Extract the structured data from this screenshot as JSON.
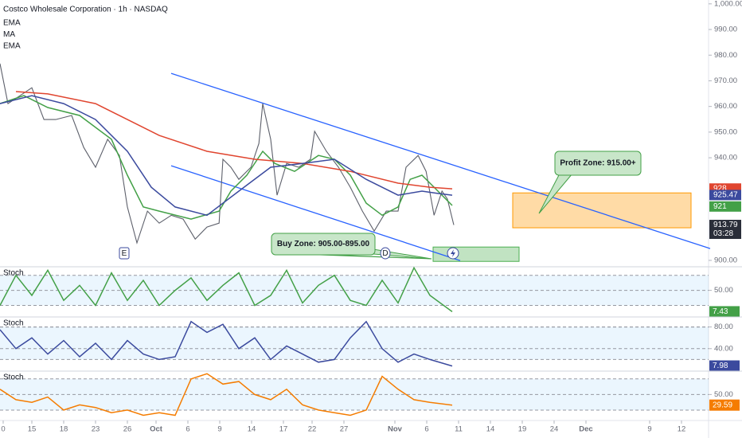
{
  "header": {
    "title": "Costco Wholesale Corporation · 1h · NASDAQ"
  },
  "chart_data": [
    {
      "type": "line",
      "xlim": [
        0,
        22.25
      ],
      "ylim": [
        897.5,
        1001.5
      ],
      "yticks": [
        {
          "value": 900,
          "label": "900.00"
        },
        {
          "value": 940,
          "label": "940.00"
        },
        {
          "value": 950,
          "label": "950.00"
        },
        {
          "value": 960,
          "label": "960.00"
        },
        {
          "value": 970,
          "label": "970.00"
        },
        {
          "value": 980,
          "label": "980.00"
        },
        {
          "value": 990,
          "label": "990.00"
        },
        {
          "value": 1000,
          "label": "1,000.00"
        }
      ],
      "xticks": [
        {
          "value": 0.1,
          "label": "0"
        },
        {
          "value": 1,
          "label": "15"
        },
        {
          "value": 2,
          "label": "18"
        },
        {
          "value": 3,
          "label": "23"
        },
        {
          "value": 4,
          "label": "26"
        },
        {
          "value": 4.9,
          "label": "Oct"
        },
        {
          "value": 5.9,
          "label": "6"
        },
        {
          "value": 6.9,
          "label": "9"
        },
        {
          "value": 7.9,
          "label": "14"
        },
        {
          "value": 8.9,
          "label": "17"
        },
        {
          "value": 9.8,
          "label": "22"
        },
        {
          "value": 10.8,
          "label": "27"
        },
        {
          "value": 12.4,
          "label": "Nov"
        },
        {
          "value": 13.4,
          "label": "6"
        },
        {
          "value": 14.4,
          "label": "11"
        },
        {
          "value": 15.4,
          "label": "14"
        },
        {
          "value": 16.4,
          "label": "19"
        },
        {
          "value": 17.4,
          "label": "24"
        },
        {
          "value": 18.4,
          "label": "Dec"
        },
        {
          "value": 20.4,
          "label": "9"
        },
        {
          "value": 21.4,
          "label": "12"
        }
      ],
      "series": [
        {
          "color": "#5d606b",
          "x": [
            0,
            0.25,
            0.63,
            1,
            1.38,
            1.75,
            2.25,
            2.63,
            3,
            3.38,
            3.75,
            4,
            4.3,
            4.63,
            5,
            5.38,
            5.75,
            6.13,
            6.5,
            6.88,
            7,
            7.25,
            7.5,
            7.88,
            8.13,
            8.25,
            8.5,
            8.7,
            9,
            9.38,
            9.75,
            9.88,
            10.25,
            10.63,
            11,
            11.38,
            11.75,
            12.13,
            12.5,
            12.75,
            13.13,
            13.38,
            13.63,
            13.88,
            14.05,
            14.25
          ],
          "values": [
            976.7,
            961.1,
            964.2,
            967.3,
            954.9,
            954.9,
            956.5,
            944.0,
            936.3,
            947.2,
            940.9,
            920.8,
            906.8,
            919.2,
            914.5,
            917.6,
            916.1,
            908.3,
            913.0,
            914.5,
            939.4,
            936.3,
            931.6,
            936.3,
            945.6,
            961.1,
            947.2,
            925.4,
            937.8,
            936.3,
            939.4,
            950.3,
            942.5,
            936.3,
            928.5,
            919.2,
            911.4,
            919.2,
            919.2,
            936.3,
            940.9,
            934.7,
            917.6,
            927.0,
            923.9,
            913.8
          ]
        },
        {
          "name": "EMA",
          "color": "#43a047",
          "x": [
            0,
            0.75,
            1.5,
            2.5,
            3.5,
            4,
            4.5,
            5,
            6,
            6.88,
            7.25,
            7.75,
            8.25,
            8.63,
            9.25,
            10,
            10.5,
            11,
            11.5,
            12,
            12.5,
            12.88,
            13.25,
            13.63,
            14.2
          ],
          "values": [
            961.1,
            964.2,
            959.6,
            956.5,
            947.2,
            933.2,
            920.8,
            919.2,
            916.1,
            919.2,
            927.0,
            933.2,
            942.5,
            937.8,
            934.7,
            940.9,
            939.4,
            933.2,
            922.3,
            917.6,
            920.8,
            931.6,
            933.2,
            928.5,
            921.4
          ]
        },
        {
          "name": "MA",
          "color": "#e0452f",
          "x": [
            0.5,
            1.5,
            3,
            4,
            5,
            6.5,
            8,
            9.5,
            11,
            12.5,
            13.5,
            14.2
          ],
          "values": [
            965.8,
            964.9,
            961.1,
            954.9,
            948.7,
            942.5,
            939.4,
            937.8,
            934.7,
            930.1,
            928.5,
            927.9
          ]
        },
        {
          "name": "EMA",
          "color": "#3b4a9e",
          "x": [
            0,
            1,
            2,
            3,
            4,
            4.75,
            5.5,
            6.5,
            7.5,
            8.5,
            9.5,
            10.5,
            11.5,
            12.5,
            13.25,
            13.75,
            14.2
          ],
          "values": [
            961.1,
            964.2,
            961.1,
            954.9,
            942.5,
            928.5,
            920.8,
            917.6,
            927.0,
            936.3,
            937.8,
            939.4,
            931.6,
            925.4,
            927.0,
            926.1,
            925.4
          ]
        }
      ],
      "price_labels": [
        {
          "value": 928,
          "label": "928",
          "color": "#e0452f"
        },
        {
          "value": 925.47,
          "label": "925.47",
          "color": "#3b4a9e"
        },
        {
          "value": 921,
          "label": "921",
          "color": "#43a047"
        },
        {
          "value": 913.79,
          "label": "913.79",
          "color": "#2a2e39"
        }
      ],
      "countdown": "03:28",
      "trendlines": [
        {
          "x": [
            5.375,
            22.3
          ],
          "y": [
            972.9,
            904.6
          ]
        },
        {
          "x": [
            5.375,
            14.45
          ],
          "y": [
            936.9,
            899.9
          ]
        }
      ],
      "zones": [
        {
          "label": "Profit Zone: 915.00+",
          "x": [
            16.1,
            21.7
          ],
          "y": [
            912.7,
            926.3
          ],
          "color": "#ff9800"
        },
        {
          "label": "Buy Zone: 905.00-895.00",
          "x": [
            13.6,
            16.3
          ],
          "y": [
            899.6,
            905.2
          ],
          "color": "#4caf50"
        }
      ],
      "events": [
        {
          "label": "E",
          "x": 3.9
        },
        {
          "label": "D",
          "x": 12.1
        }
      ]
    },
    {
      "type": "line",
      "title": "Stoch",
      "xlim": [
        0,
        22.25
      ],
      "ylim": [
        -3,
        97
      ],
      "yticks": [
        {
          "value": 50,
          "label": "50.00"
        }
      ],
      "band": [
        20,
        80
      ],
      "series": [
        {
          "color": "#43a047",
          "x": [
            0,
            0.5,
            1,
            1.5,
            2,
            2.5,
            3,
            3.5,
            4,
            4.5,
            5,
            5.5,
            6,
            6.5,
            7,
            7.5,
            8,
            8.5,
            9,
            9.5,
            10,
            10.5,
            11,
            11.5,
            12,
            12.5,
            13,
            13.5,
            14.2
          ],
          "values": [
            20,
            80,
            40,
            90,
            30,
            60,
            20,
            85,
            30,
            70,
            20,
            50,
            75,
            30,
            60,
            85,
            20,
            40,
            90,
            25,
            60,
            80,
            30,
            20,
            70,
            25,
            95,
            40,
            7.43
          ]
        }
      ]
    },
    {
      "type": "line",
      "title": "Stoch",
      "xlim": [
        0,
        22.25
      ],
      "ylim": [
        -1.5,
        98.5
      ],
      "yticks": [
        {
          "value": 40,
          "label": "40.00"
        },
        {
          "value": 80,
          "label": "80.00"
        }
      ],
      "band": [
        20,
        80
      ],
      "series": [
        {
          "color": "#3b4a9e",
          "x": [
            0,
            0.5,
            1,
            1.5,
            2,
            2.5,
            3,
            3.5,
            4,
            4.5,
            5,
            5.5,
            6,
            6.5,
            7,
            7.5,
            8,
            8.5,
            9,
            9.5,
            10,
            10.5,
            11,
            11.5,
            12,
            12.5,
            13,
            13.5,
            14.2
          ],
          "values": [
            75,
            40,
            60,
            30,
            55,
            25,
            50,
            20,
            55,
            30,
            20,
            25,
            90,
            70,
            85,
            40,
            60,
            20,
            45,
            30,
            15,
            20,
            60,
            90,
            40,
            15,
            30,
            20,
            7.98
          ]
        }
      ]
    },
    {
      "type": "line",
      "title": "Stoch",
      "xlim": [
        0,
        22.25
      ],
      "ylim": [
        0,
        95
      ],
      "yticks": [
        {
          "value": 50,
          "label": "50.00"
        }
      ],
      "band": [
        20,
        80
      ],
      "series": [
        {
          "color": "#f57c00",
          "x": [
            0,
            0.5,
            1,
            1.5,
            2,
            2.5,
            3,
            3.5,
            4,
            4.5,
            5,
            5.5,
            6,
            6.5,
            7,
            7.5,
            8,
            8.5,
            9,
            9.5,
            10,
            10.5,
            11,
            11.5,
            12,
            12.5,
            13,
            13.5,
            14.2
          ],
          "values": [
            60,
            40,
            35,
            45,
            20,
            30,
            25,
            15,
            20,
            10,
            15,
            10,
            80,
            90,
            70,
            75,
            50,
            40,
            60,
            30,
            20,
            15,
            10,
            20,
            85,
            60,
            40,
            35,
            29.59
          ]
        }
      ]
    }
  ]
}
